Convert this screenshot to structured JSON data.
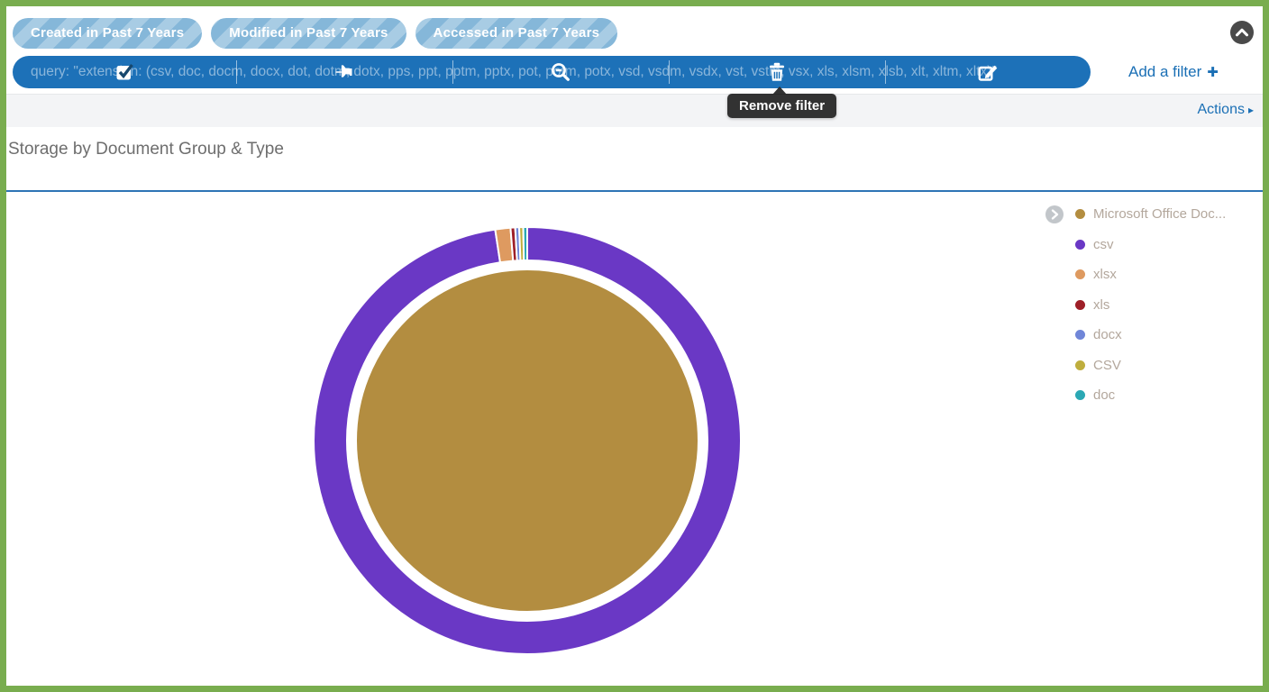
{
  "filters": {
    "pills": [
      {
        "label": "Created in Past 7 Years"
      },
      {
        "label": "Modified in Past 7 Years"
      },
      {
        "label": "Accessed in Past 7 Years"
      }
    ],
    "query": {
      "text": "query: \"extension: (csv, doc, docm, docx, dot, dotm, dotx, pps, ppt, pptm, pptx, pot, potm, potx, vsd, vsdm, vsdx, vst, vstm, vsx, xls, xlsm, xlsb, xlt, xltm, xltx)\"",
      "icon_names": [
        "checkbox-icon",
        "pin-icon",
        "zoom-out-icon",
        "trash-icon",
        "edit-icon"
      ]
    },
    "add_filter_label": "Add a filter",
    "add_filter_plus": "✚"
  },
  "actions": {
    "label": "Actions",
    "caret": "▸"
  },
  "tooltip": {
    "text": "Remove filter"
  },
  "panel": {
    "title": "Storage by Document Group & Type"
  },
  "colors": {
    "accent_blue": "#1d71b8",
    "pill_stripe_dark": "#85b7d9",
    "pill_stripe_light": "#a8cce4",
    "link_blue": "#1a6fb5",
    "divider_blue": "#2e74b5",
    "frame_green": "#79ad4f",
    "tooltip_bg": "#2a2a2a",
    "legend_text": "#b3a79c",
    "title_text": "#6e6e6e"
  },
  "chart_data": {
    "type": "pie",
    "subtype": "sunburst-donut",
    "title": "Storage by Document Group & Type",
    "start_angle_deg": 0,
    "direction": "clockwise",
    "legend_position": "right",
    "rings": {
      "inner": [
        {
          "label": "Microsoft Office Documents",
          "percent": 100,
          "color": "#b38d40"
        }
      ],
      "outer": [
        {
          "label": "csv",
          "percent": 97.6,
          "color": "#6a38c5"
        },
        {
          "label": "xlsx",
          "percent": 1.15,
          "color": "#de9a60"
        },
        {
          "label": "xls",
          "percent": 0.35,
          "color": "#9e1f28"
        },
        {
          "label": "docx",
          "percent": 0.3,
          "color": "#7086d8"
        },
        {
          "label": "CSV",
          "percent": 0.3,
          "color": "#bfae3d"
        },
        {
          "label": "doc",
          "percent": 0.3,
          "color": "#2ba8b4"
        }
      ]
    },
    "legend": [
      {
        "label": "Microsoft Office Doc...",
        "color": "#b38d40",
        "expandable": true
      },
      {
        "label": "csv",
        "color": "#6a38c5"
      },
      {
        "label": "xlsx",
        "color": "#de9a60"
      },
      {
        "label": "xls",
        "color": "#9e1f28"
      },
      {
        "label": "docx",
        "color": "#7086d8"
      },
      {
        "label": "CSV",
        "color": "#bfae3d"
      },
      {
        "label": "doc",
        "color": "#2ba8b4"
      }
    ]
  }
}
